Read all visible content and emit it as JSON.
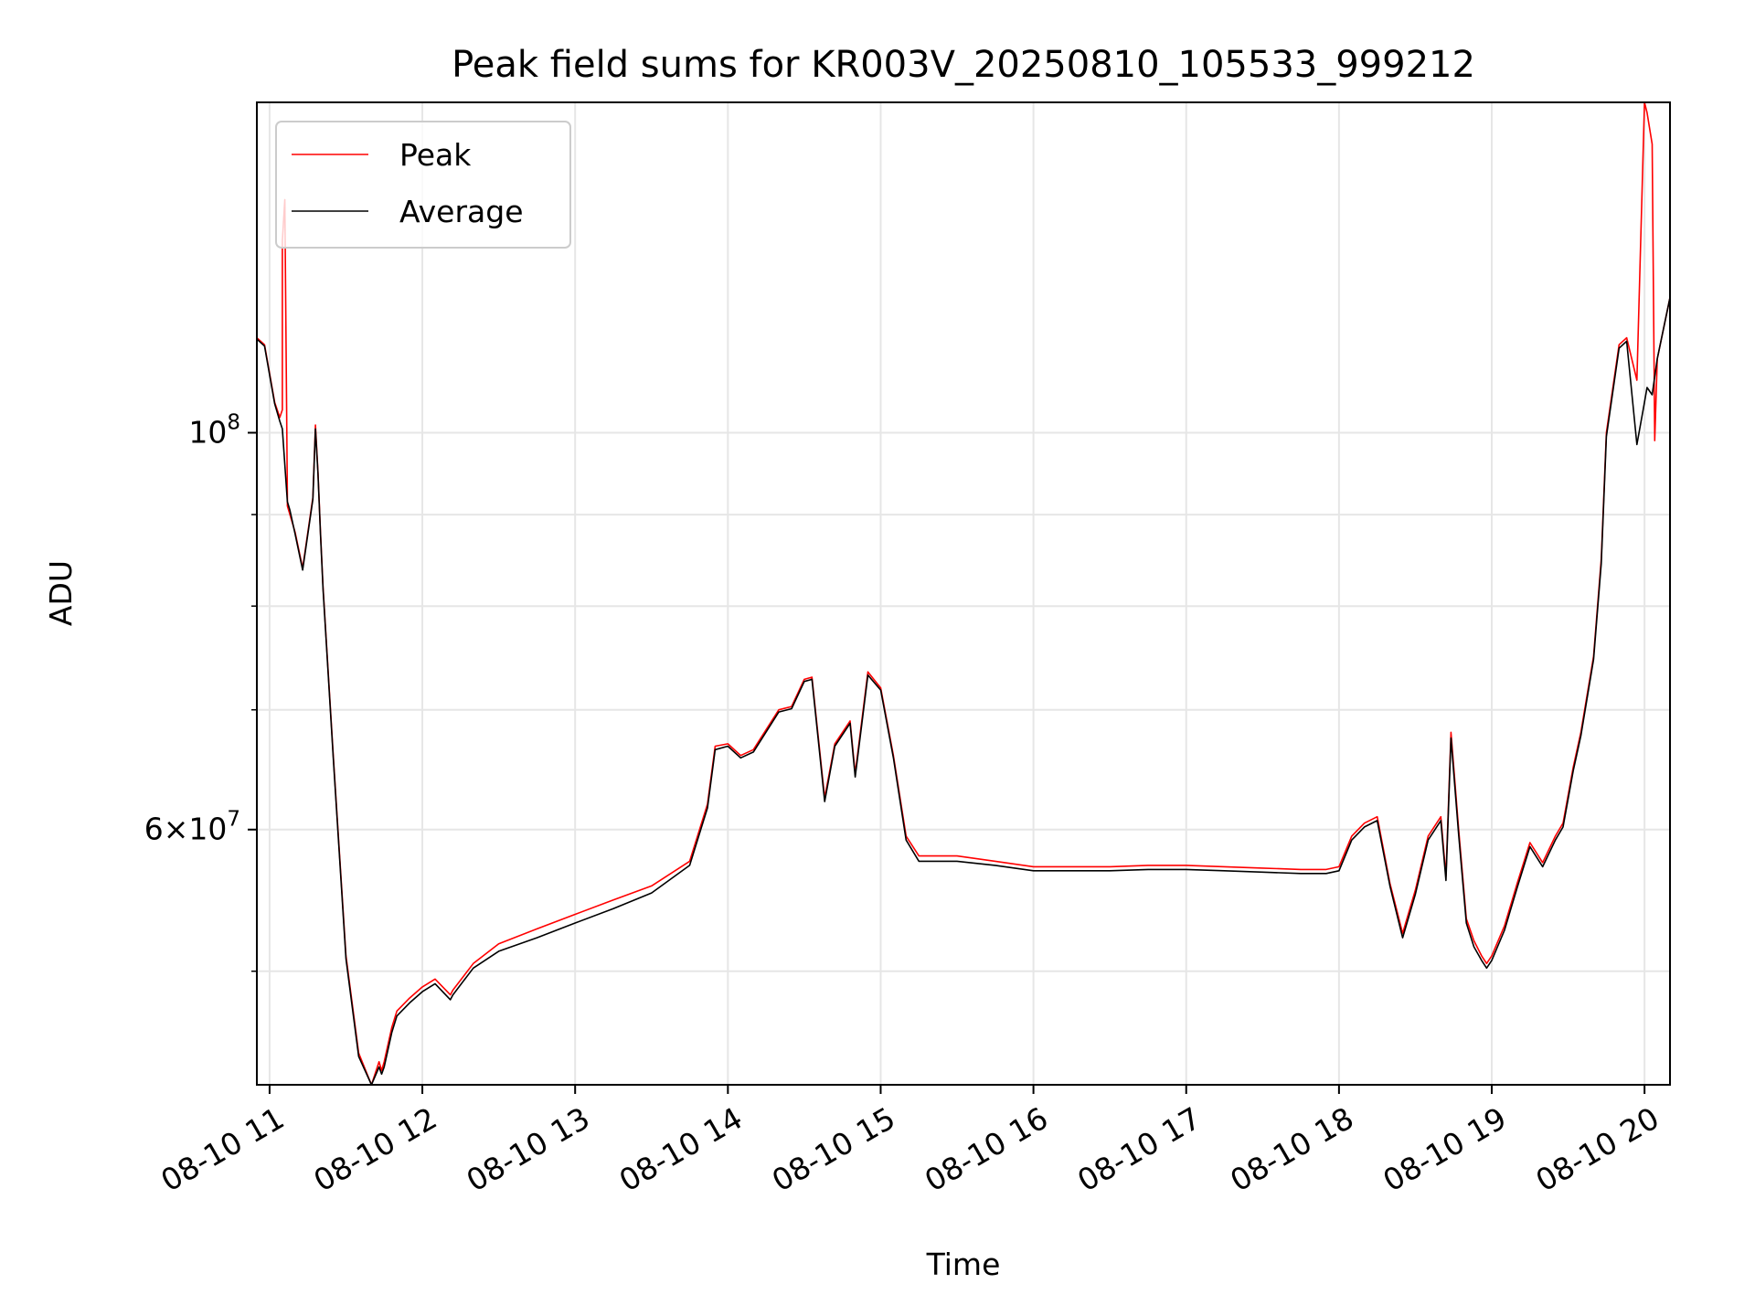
{
  "chart_data": {
    "type": "line",
    "title": "Peak field sums for KR003V_20250810_105533_999212",
    "xlabel": "Time",
    "ylabel": "ADU",
    "y_scale": "log",
    "ylim": [
      43200000,
      153000000
    ],
    "xlim": [
      "2025-08-10 10:55",
      "2025-08-10 20:10"
    ],
    "grid": true,
    "legend_position": "top-left",
    "x_ticks": [
      {
        "t": "2025-08-10 11:00",
        "label": "08-10 11"
      },
      {
        "t": "2025-08-10 12:00",
        "label": "08-10 12"
      },
      {
        "t": "2025-08-10 13:00",
        "label": "08-10 13"
      },
      {
        "t": "2025-08-10 14:00",
        "label": "08-10 14"
      },
      {
        "t": "2025-08-10 15:00",
        "label": "08-10 15"
      },
      {
        "t": "2025-08-10 16:00",
        "label": "08-10 16"
      },
      {
        "t": "2025-08-10 17:00",
        "label": "08-10 17"
      },
      {
        "t": "2025-08-10 18:00",
        "label": "08-10 18"
      },
      {
        "t": "2025-08-10 19:00",
        "label": "08-10 19"
      },
      {
        "t": "2025-08-10 20:00",
        "label": "08-10 20"
      }
    ],
    "y_major_ticks": [
      {
        "value": 100000000,
        "base": "10",
        "exp": "8"
      },
      {
        "value": 60000000,
        "base": "6×10",
        "exp": "7"
      }
    ],
    "y_minor_ticks": [
      50000000,
      70000000,
      80000000,
      90000000
    ],
    "series": [
      {
        "name": "Peak",
        "color": "#ff0000",
        "x": [
          "2025-08-10 10:55",
          "2025-08-10 10:58",
          "2025-08-10 11:02",
          "2025-08-10 11:04",
          "2025-08-10 11:05",
          "2025-08-10 11:05",
          "2025-08-10 11:06",
          "2025-08-10 11:07",
          "2025-08-10 11:07",
          "2025-08-10 11:08",
          "2025-08-10 11:10",
          "2025-08-10 11:13",
          "2025-08-10 11:17",
          "2025-08-10 11:18",
          "2025-08-10 11:19",
          "2025-08-10 11:20",
          "2025-08-10 11:21",
          "2025-08-10 11:25",
          "2025-08-10 11:30",
          "2025-08-10 11:35",
          "2025-08-10 11:40",
          "2025-08-10 11:43",
          "2025-08-10 11:44",
          "2025-08-10 11:45",
          "2025-08-10 11:48",
          "2025-08-10 11:50",
          "2025-08-10 11:55",
          "2025-08-10 12:00",
          "2025-08-10 12:05",
          "2025-08-10 12:11",
          "2025-08-10 12:12",
          "2025-08-10 12:20",
          "2025-08-10 12:30",
          "2025-08-10 12:45",
          "2025-08-10 13:00",
          "2025-08-10 13:15",
          "2025-08-10 13:30",
          "2025-08-10 13:45",
          "2025-08-10 13:52",
          "2025-08-10 13:55",
          "2025-08-10 14:00",
          "2025-08-10 14:05",
          "2025-08-10 14:10",
          "2025-08-10 14:20",
          "2025-08-10 14:25",
          "2025-08-10 14:30",
          "2025-08-10 14:33",
          "2025-08-10 14:38",
          "2025-08-10 14:42",
          "2025-08-10 14:48",
          "2025-08-10 14:50",
          "2025-08-10 14:55",
          "2025-08-10 15:00",
          "2025-08-10 15:05",
          "2025-08-10 15:10",
          "2025-08-10 15:15",
          "2025-08-10 15:30",
          "2025-08-10 15:45",
          "2025-08-10 16:00",
          "2025-08-10 16:30",
          "2025-08-10 16:45",
          "2025-08-10 17:00",
          "2025-08-10 17:15",
          "2025-08-10 17:30",
          "2025-08-10 17:45",
          "2025-08-10 17:55",
          "2025-08-10 18:00",
          "2025-08-10 18:05",
          "2025-08-10 18:10",
          "2025-08-10 18:15",
          "2025-08-10 18:20",
          "2025-08-10 18:25",
          "2025-08-10 18:30",
          "2025-08-10 18:35",
          "2025-08-10 18:40",
          "2025-08-10 18:42",
          "2025-08-10 18:44",
          "2025-08-10 18:47",
          "2025-08-10 18:50",
          "2025-08-10 18:53",
          "2025-08-10 18:56",
          "2025-08-10 18:58",
          "2025-08-10 19:00",
          "2025-08-10 19:05",
          "2025-08-10 19:10",
          "2025-08-10 19:15",
          "2025-08-10 19:20",
          "2025-08-10 19:25",
          "2025-08-10 19:28",
          "2025-08-10 19:32",
          "2025-08-10 19:35",
          "2025-08-10 19:40",
          "2025-08-10 19:43",
          "2025-08-10 19:45",
          "2025-08-10 19:50",
          "2025-08-10 19:53",
          "2025-08-10 19:57",
          "2025-08-10 20:00",
          "2025-08-10 20:01",
          "2025-08-10 20:03",
          "2025-08-10 20:04",
          "2025-08-10 20:05",
          "2025-08-10 20:10"
        ],
        "y": [
          113000000,
          112000000,
          104000000,
          102000000,
          103000000,
          128000000,
          135000000,
          92000000,
          91000000,
          90000000,
          88000000,
          84000000,
          92000000,
          101000000,
          95000000,
          88000000,
          82000000,
          66000000,
          51000000,
          45000000,
          43200000,
          44500000,
          44000000,
          44500000,
          46500000,
          47500000,
          48300000,
          49000000,
          49500000,
          48500000,
          48800000,
          50500000,
          51800000,
          52800000,
          53800000,
          54800000,
          55800000,
          57600000,
          62000000,
          66800000,
          67000000,
          66000000,
          66500000,
          70000000,
          70300000,
          72800000,
          73000000,
          62500000,
          67000000,
          69000000,
          64500000,
          73500000,
          72000000,
          66000000,
          59500000,
          58000000,
          58000000,
          57600000,
          57200000,
          57200000,
          57300000,
          57300000,
          57200000,
          57100000,
          57000000,
          57000000,
          57200000,
          59500000,
          60500000,
          61000000,
          56000000,
          52500000,
          55500000,
          59500000,
          61000000,
          56500000,
          68000000,
          60000000,
          53500000,
          52000000,
          51000000,
          50500000,
          51000000,
          53000000,
          56000000,
          59000000,
          57500000,
          59500000,
          60500000,
          65000000,
          68000000,
          75000000,
          85000000,
          100000000,
          112000000,
          113000000,
          107000000,
          153000000,
          151000000,
          145000000,
          99000000,
          110000000,
          119000000
        ]
      },
      {
        "name": "Average",
        "color": "#000000",
        "x": [
          "2025-08-10 10:55",
          "2025-08-10 10:58",
          "2025-08-10 11:02",
          "2025-08-10 11:04",
          "2025-08-10 11:05",
          "2025-08-10 11:07",
          "2025-08-10 11:08",
          "2025-08-10 11:10",
          "2025-08-10 11:13",
          "2025-08-10 11:17",
          "2025-08-10 11:18",
          "2025-08-10 11:19",
          "2025-08-10 11:20",
          "2025-08-10 11:21",
          "2025-08-10 11:25",
          "2025-08-10 11:30",
          "2025-08-10 11:35",
          "2025-08-10 11:40",
          "2025-08-10 11:43",
          "2025-08-10 11:44",
          "2025-08-10 11:45",
          "2025-08-10 11:48",
          "2025-08-10 11:50",
          "2025-08-10 11:55",
          "2025-08-10 12:00",
          "2025-08-10 12:05",
          "2025-08-10 12:11",
          "2025-08-10 12:12",
          "2025-08-10 12:20",
          "2025-08-10 12:30",
          "2025-08-10 12:45",
          "2025-08-10 13:00",
          "2025-08-10 13:15",
          "2025-08-10 13:30",
          "2025-08-10 13:45",
          "2025-08-10 13:52",
          "2025-08-10 13:55",
          "2025-08-10 14:00",
          "2025-08-10 14:05",
          "2025-08-10 14:10",
          "2025-08-10 14:20",
          "2025-08-10 14:25",
          "2025-08-10 14:30",
          "2025-08-10 14:33",
          "2025-08-10 14:38",
          "2025-08-10 14:42",
          "2025-08-10 14:48",
          "2025-08-10 14:50",
          "2025-08-10 14:55",
          "2025-08-10 15:00",
          "2025-08-10 15:05",
          "2025-08-10 15:10",
          "2025-08-10 15:15",
          "2025-08-10 15:30",
          "2025-08-10 15:45",
          "2025-08-10 16:00",
          "2025-08-10 16:30",
          "2025-08-10 16:45",
          "2025-08-10 17:00",
          "2025-08-10 17:15",
          "2025-08-10 17:30",
          "2025-08-10 17:45",
          "2025-08-10 17:55",
          "2025-08-10 18:00",
          "2025-08-10 18:05",
          "2025-08-10 18:10",
          "2025-08-10 18:15",
          "2025-08-10 18:20",
          "2025-08-10 18:25",
          "2025-08-10 18:30",
          "2025-08-10 18:35",
          "2025-08-10 18:40",
          "2025-08-10 18:42",
          "2025-08-10 18:44",
          "2025-08-10 18:47",
          "2025-08-10 18:50",
          "2025-08-10 18:53",
          "2025-08-10 18:56",
          "2025-08-10 18:58",
          "2025-08-10 19:00",
          "2025-08-10 19:05",
          "2025-08-10 19:10",
          "2025-08-10 19:15",
          "2025-08-10 19:20",
          "2025-08-10 19:25",
          "2025-08-10 19:28",
          "2025-08-10 19:32",
          "2025-08-10 19:35",
          "2025-08-10 19:40",
          "2025-08-10 19:43",
          "2025-08-10 19:45",
          "2025-08-10 19:50",
          "2025-08-10 19:53",
          "2025-08-10 19:57",
          "2025-08-10 20:00",
          "2025-08-10 20:01",
          "2025-08-10 20:03",
          "2025-08-10 20:05",
          "2025-08-10 20:10"
        ],
        "y": [
          112800000,
          111800000,
          103800000,
          101500000,
          100500000,
          91500000,
          90500000,
          87800000,
          83800000,
          91800000,
          100500000,
          94800000,
          87800000,
          81800000,
          65800000,
          50800000,
          44800000,
          43200000,
          44200000,
          43800000,
          44200000,
          46200000,
          47200000,
          48000000,
          48700000,
          49200000,
          48200000,
          48500000,
          50200000,
          51300000,
          52200000,
          53200000,
          54200000,
          55300000,
          57300000,
          61700000,
          66500000,
          66800000,
          65800000,
          66300000,
          69800000,
          70100000,
          72600000,
          72800000,
          62200000,
          66800000,
          68800000,
          64200000,
          73200000,
          71800000,
          65800000,
          59200000,
          57600000,
          57600000,
          57300000,
          56900000,
          56900000,
          57000000,
          57000000,
          56900000,
          56800000,
          56700000,
          56700000,
          56900000,
          59200000,
          60200000,
          60700000,
          55800000,
          52200000,
          55200000,
          59200000,
          60700000,
          56200000,
          67500000,
          59600000,
          53200000,
          51600000,
          50700000,
          50200000,
          50700000,
          52700000,
          55700000,
          58700000,
          57200000,
          59200000,
          60200000,
          64700000,
          67700000,
          74700000,
          84500000,
          99500000,
          111500000,
          112500000,
          98500000,
          104000000,
          106000000,
          105000000,
          110000000,
          119000000
        ]
      }
    ]
  }
}
